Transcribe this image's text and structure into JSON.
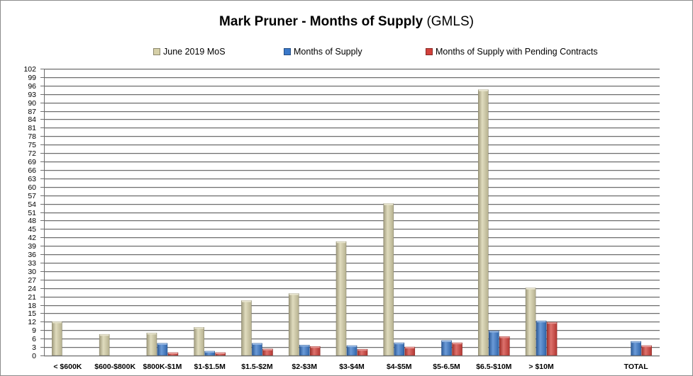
{
  "chart_data": {
    "type": "bar",
    "title": "Mark Pruner - Months of Supply",
    "subtitle": "(GMLS)",
    "xlabel": "",
    "ylabel": "",
    "ylim": [
      0,
      102
    ],
    "y_tick_step": 3,
    "grid": true,
    "legend_position": "top",
    "categories": [
      "< $600K",
      "$600-$800K",
      "$800K-$1M",
      "$1-$1.5M",
      "$1.5-$2M",
      "$2-$3M",
      "$3-$4M",
      "$4-$5M",
      "$5-6.5M",
      "$6.5-$10M",
      "> $10M",
      "",
      "TOTAL"
    ],
    "series": [
      {
        "name": "June 2019 MoS",
        "color": "#d6d0a8",
        "values": [
          12,
          7.5,
          8,
          10,
          19.5,
          22,
          40.5,
          54,
          null,
          94.5,
          24,
          null,
          null
        ]
      },
      {
        "name": "Months of Supply",
        "color": "#3a78c9",
        "values": [
          null,
          null,
          4.3,
          1.5,
          4.3,
          3.7,
          3.5,
          4.5,
          5.3,
          8.7,
          12.3,
          null,
          5
        ]
      },
      {
        "name": "Months of Supply with Pending Contracts",
        "color": "#d2413b",
        "values": [
          null,
          null,
          1,
          1,
          2.3,
          3.2,
          2.2,
          3,
          4.5,
          6.7,
          11.8,
          null,
          3.5
        ]
      }
    ]
  }
}
